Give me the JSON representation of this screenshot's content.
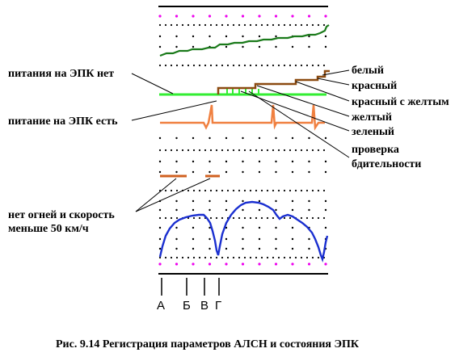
{
  "labels": {
    "epk_power_off": "питания на ЭПК нет",
    "epk_power_on": "питание на ЭПК есть",
    "no_lights_line1": "нет огней и скорость",
    "no_lights_line2": "меньше 50 км/ч"
  },
  "signals": {
    "white": "белый",
    "red": "красный",
    "red_yellow": "красный с желтым",
    "yellow": "желтый",
    "green": "зеленый",
    "vigilance_line1": "проверка",
    "vigilance_line2": "бдительности"
  },
  "time_marks": [
    "А",
    "Б",
    "В",
    "Г"
  ],
  "caption": "Рис.   9.14  Регистрация параметров АЛСН и состояния ЭПК",
  "colors": {
    "track_green": "#1a7a1a",
    "power_line": "#33ee33",
    "signal_brown": "#8b4a10",
    "epk_orange": "#f08040",
    "speed_blue": "#1a2fd0",
    "marker_magenta": "#ee00ee"
  }
}
